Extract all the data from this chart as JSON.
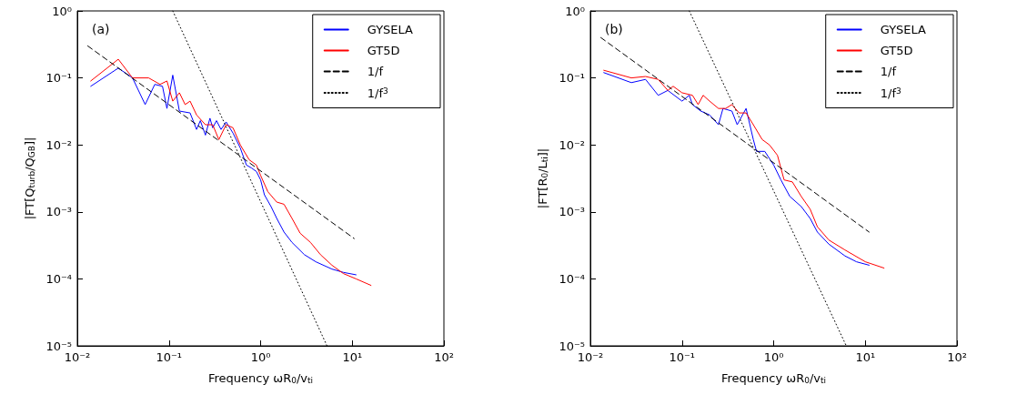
{
  "chart_data": [
    {
      "type": "line",
      "title": "(a)",
      "xlabel": "Frequency ωR$_{0}$/v$_{ti}$",
      "ylabel": "|FT[Q$_{turb}$/Q$_{GB}$]|",
      "log": "xy",
      "grid": false,
      "legend": "top right",
      "marker": "none",
      "xlim": [
        0.01,
        100
      ],
      "ylim": [
        1e-05,
        1
      ],
      "xticks": [
        {
          "value": 0.01,
          "label": "10⁻²"
        },
        {
          "value": 0.1,
          "label": "10⁻¹"
        },
        {
          "value": 1,
          "label": "10⁰"
        },
        {
          "value": 10,
          "label": "10¹"
        },
        {
          "value": 100,
          "label": "10²"
        }
      ],
      "yticks": [
        {
          "value": 1e-05,
          "label": "10⁻⁵"
        },
        {
          "value": 0.0001,
          "label": "10⁻⁴"
        },
        {
          "value": 0.001,
          "label": "10⁻³"
        },
        {
          "value": 0.01,
          "label": "10⁻²"
        },
        {
          "value": 0.1,
          "label": "10⁻¹"
        },
        {
          "value": 1,
          "label": "10⁰"
        }
      ],
      "series": [
        {
          "name": "GYSELA",
          "color": "#0000ff",
          "line_style": "solid",
          "x": [
            0.014,
            0.028,
            0.04,
            0.055,
            0.07,
            0.085,
            0.095,
            0.11,
            0.13,
            0.17,
            0.2,
            0.22,
            0.25,
            0.28,
            0.3,
            0.33,
            0.37,
            0.42,
            0.5,
            0.6,
            0.7,
            0.8,
            0.9,
            1.0,
            1.1,
            1.3,
            1.5,
            1.8,
            2.2,
            3,
            4,
            6,
            8,
            11
          ],
          "values": [
            0.075,
            0.14,
            0.1,
            0.04,
            0.08,
            0.075,
            0.035,
            0.11,
            0.032,
            0.03,
            0.017,
            0.023,
            0.014,
            0.025,
            0.018,
            0.023,
            0.017,
            0.022,
            0.015,
            0.009,
            0.005,
            0.0045,
            0.004,
            0.003,
            0.0018,
            0.0012,
            0.0008,
            0.0005,
            0.00035,
            0.00023,
            0.00018,
            0.00014,
            0.000125,
            0.000115
          ]
        },
        {
          "name": "GT5D",
          "color": "#ff0000",
          "line_style": "solid",
          "x": [
            0.014,
            0.028,
            0.04,
            0.06,
            0.08,
            0.095,
            0.11,
            0.13,
            0.15,
            0.17,
            0.2,
            0.25,
            0.3,
            0.35,
            0.42,
            0.5,
            0.6,
            0.75,
            0.9,
            1.0,
            1.2,
            1.5,
            1.8,
            2.2,
            2.7,
            3.5,
            4.5,
            6,
            8,
            11,
            16
          ],
          "values": [
            0.09,
            0.19,
            0.1,
            0.1,
            0.08,
            0.09,
            0.045,
            0.06,
            0.04,
            0.045,
            0.028,
            0.02,
            0.02,
            0.012,
            0.02,
            0.018,
            0.01,
            0.006,
            0.005,
            0.0035,
            0.002,
            0.0014,
            0.0013,
            0.0008,
            0.00048,
            0.00035,
            0.00023,
            0.00016,
            0.00012,
            0.0001,
            8e-05
          ]
        },
        {
          "name": "1/f",
          "color": "#000000",
          "line_style": "dashed",
          "x": [
            0.013,
            10.5
          ],
          "values": [
            0.3,
            0.0004
          ]
        },
        {
          "name": "1/f$^{3}$",
          "color": "#000000",
          "line_style": "dotted",
          "x": [
            0.11,
            5.3
          ],
          "values": [
            1,
            1e-05
          ]
        }
      ]
    },
    {
      "type": "line",
      "title": "(b)",
      "xlabel": "Frequency ωR$_{0}$/v$_{ti}$",
      "ylabel": "|FT[R$_{0}$/L$_{ti}$]|",
      "log": "xy",
      "grid": false,
      "legend": "top right",
      "marker": "none",
      "xlim": [
        0.01,
        100
      ],
      "ylim": [
        1e-05,
        1
      ],
      "xticks": [
        {
          "value": 0.01,
          "label": "10⁻²"
        },
        {
          "value": 0.1,
          "label": "10⁻¹"
        },
        {
          "value": 1,
          "label": "10⁰"
        },
        {
          "value": 10,
          "label": "10¹"
        },
        {
          "value": 100,
          "label": "10²"
        }
      ],
      "yticks": [
        {
          "value": 1e-05,
          "label": "10⁻⁵"
        },
        {
          "value": 0.0001,
          "label": "10⁻⁴"
        },
        {
          "value": 0.001,
          "label": "10⁻³"
        },
        {
          "value": 0.01,
          "label": "10⁻²"
        },
        {
          "value": 0.1,
          "label": "10⁻¹"
        },
        {
          "value": 1,
          "label": "10⁰"
        }
      ],
      "series": [
        {
          "name": "GYSELA",
          "color": "#0000ff",
          "line_style": "solid",
          "x": [
            0.014,
            0.028,
            0.04,
            0.055,
            0.07,
            0.1,
            0.12,
            0.13,
            0.16,
            0.2,
            0.25,
            0.28,
            0.35,
            0.4,
            0.5,
            0.6,
            0.65,
            0.8,
            1.0,
            1.2,
            1.5,
            2,
            2.5,
            3,
            4,
            6,
            8,
            11
          ],
          "values": [
            0.12,
            0.085,
            0.095,
            0.055,
            0.065,
            0.045,
            0.055,
            0.04,
            0.032,
            0.028,
            0.02,
            0.035,
            0.032,
            0.02,
            0.035,
            0.012,
            0.008,
            0.008,
            0.005,
            0.003,
            0.0017,
            0.0012,
            0.0008,
            0.0005,
            0.00033,
            0.00022,
            0.00018,
            0.00016
          ]
        },
        {
          "name": "GT5D",
          "color": "#ff0000",
          "line_style": "solid",
          "x": [
            0.014,
            0.028,
            0.04,
            0.055,
            0.07,
            0.08,
            0.1,
            0.13,
            0.15,
            0.17,
            0.2,
            0.25,
            0.3,
            0.35,
            0.42,
            0.5,
            0.6,
            0.75,
            0.9,
            1.1,
            1.3,
            1.6,
            2,
            2.5,
            3,
            4,
            6,
            10,
            16
          ],
          "values": [
            0.13,
            0.1,
            0.105,
            0.095,
            0.065,
            0.075,
            0.06,
            0.055,
            0.04,
            0.055,
            0.045,
            0.035,
            0.035,
            0.04,
            0.03,
            0.03,
            0.02,
            0.012,
            0.01,
            0.007,
            0.003,
            0.0028,
            0.0017,
            0.0011,
            0.0006,
            0.00038,
            0.00027,
            0.00018,
            0.000145
          ]
        },
        {
          "name": "1/f",
          "color": "#000000",
          "line_style": "dashed",
          "x": [
            0.013,
            11
          ],
          "values": [
            0.4,
            0.0005
          ]
        },
        {
          "name": "1/f$^{3}$",
          "color": "#000000",
          "line_style": "dotted",
          "x": [
            0.12,
            6.2
          ],
          "values": [
            1,
            1e-05
          ]
        }
      ]
    }
  ]
}
